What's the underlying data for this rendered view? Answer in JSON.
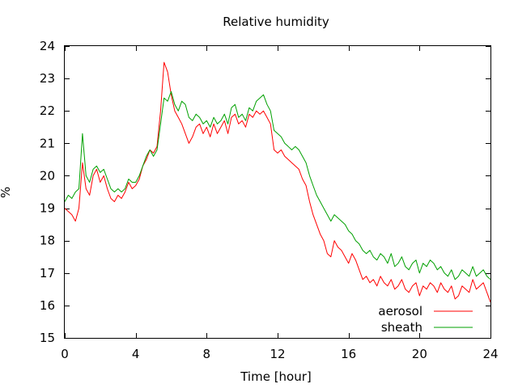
{
  "chart_data": {
    "type": "line",
    "title": "Relative humidity",
    "xlabel": "Time [hour]",
    "ylabel": "%",
    "xlim": [
      0,
      24
    ],
    "ylim": [
      15,
      24
    ],
    "xticks": [
      0,
      4,
      8,
      12,
      16,
      20,
      24
    ],
    "yticks": [
      15,
      16,
      17,
      18,
      19,
      20,
      21,
      22,
      23,
      24
    ],
    "grid": false,
    "legend_position": "bottom-right",
    "series": [
      {
        "name": "aerosol",
        "color": "#ff0000",
        "x": [
          0.0,
          0.2,
          0.4,
          0.6,
          0.8,
          1.0,
          1.2,
          1.4,
          1.6,
          1.8,
          2.0,
          2.2,
          2.4,
          2.6,
          2.8,
          3.0,
          3.2,
          3.4,
          3.6,
          3.8,
          4.0,
          4.2,
          4.4,
          4.6,
          4.8,
          5.0,
          5.2,
          5.4,
          5.6,
          5.8,
          6.0,
          6.2,
          6.4,
          6.6,
          6.8,
          7.0,
          7.2,
          7.4,
          7.6,
          7.8,
          8.0,
          8.2,
          8.4,
          8.6,
          8.8,
          9.0,
          9.2,
          9.4,
          9.6,
          9.8,
          10.0,
          10.2,
          10.4,
          10.6,
          10.8,
          11.0,
          11.2,
          11.4,
          11.6,
          11.8,
          12.0,
          12.2,
          12.4,
          12.6,
          12.8,
          13.0,
          13.2,
          13.4,
          13.6,
          13.8,
          14.0,
          14.2,
          14.4,
          14.6,
          14.8,
          15.0,
          15.2,
          15.4,
          15.6,
          15.8,
          16.0,
          16.2,
          16.4,
          16.6,
          16.8,
          17.0,
          17.2,
          17.4,
          17.6,
          17.8,
          18.0,
          18.2,
          18.4,
          18.6,
          18.8,
          19.0,
          19.2,
          19.4,
          19.6,
          19.8,
          20.0,
          20.2,
          20.4,
          20.6,
          20.8,
          21.0,
          21.2,
          21.4,
          21.6,
          21.8,
          22.0,
          22.2,
          22.4,
          22.6,
          22.8,
          23.0,
          23.2,
          23.4,
          23.6,
          23.8,
          24.0
        ],
        "y": [
          19.0,
          18.9,
          18.8,
          18.6,
          19.0,
          20.4,
          19.6,
          19.4,
          20.0,
          20.2,
          19.8,
          20.0,
          19.6,
          19.3,
          19.2,
          19.4,
          19.3,
          19.5,
          19.8,
          19.6,
          19.7,
          19.9,
          20.3,
          20.5,
          20.8,
          20.7,
          20.9,
          22.0,
          23.5,
          23.2,
          22.5,
          22.0,
          21.8,
          21.6,
          21.3,
          21.0,
          21.2,
          21.5,
          21.6,
          21.3,
          21.5,
          21.2,
          21.6,
          21.3,
          21.5,
          21.7,
          21.3,
          21.8,
          21.9,
          21.6,
          21.7,
          21.5,
          21.9,
          21.8,
          22.0,
          21.9,
          22.0,
          21.8,
          21.6,
          20.8,
          20.7,
          20.8,
          20.6,
          20.5,
          20.4,
          20.3,
          20.2,
          19.9,
          19.7,
          19.2,
          18.8,
          18.5,
          18.2,
          18.0,
          17.6,
          17.5,
          18.0,
          17.8,
          17.7,
          17.5,
          17.3,
          17.6,
          17.4,
          17.1,
          16.8,
          16.9,
          16.7,
          16.8,
          16.6,
          16.9,
          16.7,
          16.6,
          16.8,
          16.5,
          16.6,
          16.8,
          16.5,
          16.4,
          16.6,
          16.7,
          16.3,
          16.6,
          16.5,
          16.7,
          16.6,
          16.4,
          16.7,
          16.5,
          16.4,
          16.6,
          16.2,
          16.3,
          16.6,
          16.5,
          16.4,
          16.8,
          16.5,
          16.6,
          16.7,
          16.4,
          16.1
        ]
      },
      {
        "name": "sheath",
        "color": "#00a000",
        "x": [
          0.0,
          0.2,
          0.4,
          0.6,
          0.8,
          1.0,
          1.2,
          1.4,
          1.6,
          1.8,
          2.0,
          2.2,
          2.4,
          2.6,
          2.8,
          3.0,
          3.2,
          3.4,
          3.6,
          3.8,
          4.0,
          4.2,
          4.4,
          4.6,
          4.8,
          5.0,
          5.2,
          5.4,
          5.6,
          5.8,
          6.0,
          6.2,
          6.4,
          6.6,
          6.8,
          7.0,
          7.2,
          7.4,
          7.6,
          7.8,
          8.0,
          8.2,
          8.4,
          8.6,
          8.8,
          9.0,
          9.2,
          9.4,
          9.6,
          9.8,
          10.0,
          10.2,
          10.4,
          10.6,
          10.8,
          11.0,
          11.2,
          11.4,
          11.6,
          11.8,
          12.0,
          12.2,
          12.4,
          12.6,
          12.8,
          13.0,
          13.2,
          13.4,
          13.6,
          13.8,
          14.0,
          14.2,
          14.4,
          14.6,
          14.8,
          15.0,
          15.2,
          15.4,
          15.6,
          15.8,
          16.0,
          16.2,
          16.4,
          16.6,
          16.8,
          17.0,
          17.2,
          17.4,
          17.6,
          17.8,
          18.0,
          18.2,
          18.4,
          18.6,
          18.8,
          19.0,
          19.2,
          19.4,
          19.6,
          19.8,
          20.0,
          20.2,
          20.4,
          20.6,
          20.8,
          21.0,
          21.2,
          21.4,
          21.6,
          21.8,
          22.0,
          22.2,
          22.4,
          22.6,
          22.8,
          23.0,
          23.2,
          23.4,
          23.6,
          23.8,
          24.0
        ],
        "y": [
          19.2,
          19.4,
          19.3,
          19.5,
          19.6,
          21.3,
          20.0,
          19.8,
          20.2,
          20.3,
          20.1,
          20.2,
          19.9,
          19.6,
          19.5,
          19.6,
          19.5,
          19.6,
          19.9,
          19.8,
          19.8,
          20.0,
          20.3,
          20.6,
          20.8,
          20.6,
          20.8,
          21.6,
          22.4,
          22.3,
          22.6,
          22.2,
          22.0,
          22.3,
          22.2,
          21.8,
          21.7,
          21.9,
          21.8,
          21.6,
          21.7,
          21.5,
          21.8,
          21.6,
          21.7,
          21.9,
          21.6,
          22.1,
          22.2,
          21.8,
          21.9,
          21.7,
          22.1,
          22.0,
          22.3,
          22.4,
          22.5,
          22.2,
          22.0,
          21.4,
          21.3,
          21.2,
          21.0,
          20.9,
          20.8,
          20.9,
          20.8,
          20.6,
          20.4,
          20.0,
          19.7,
          19.4,
          19.2,
          19.0,
          18.8,
          18.6,
          18.8,
          18.7,
          18.6,
          18.5,
          18.3,
          18.2,
          18.0,
          17.9,
          17.7,
          17.6,
          17.7,
          17.5,
          17.4,
          17.6,
          17.5,
          17.3,
          17.6,
          17.2,
          17.3,
          17.5,
          17.2,
          17.1,
          17.3,
          17.4,
          17.0,
          17.3,
          17.2,
          17.4,
          17.3,
          17.1,
          17.2,
          17.0,
          16.9,
          17.1,
          16.8,
          16.9,
          17.1,
          17.0,
          16.9,
          17.2,
          16.9,
          17.0,
          17.1,
          16.9,
          16.8
        ]
      }
    ]
  }
}
